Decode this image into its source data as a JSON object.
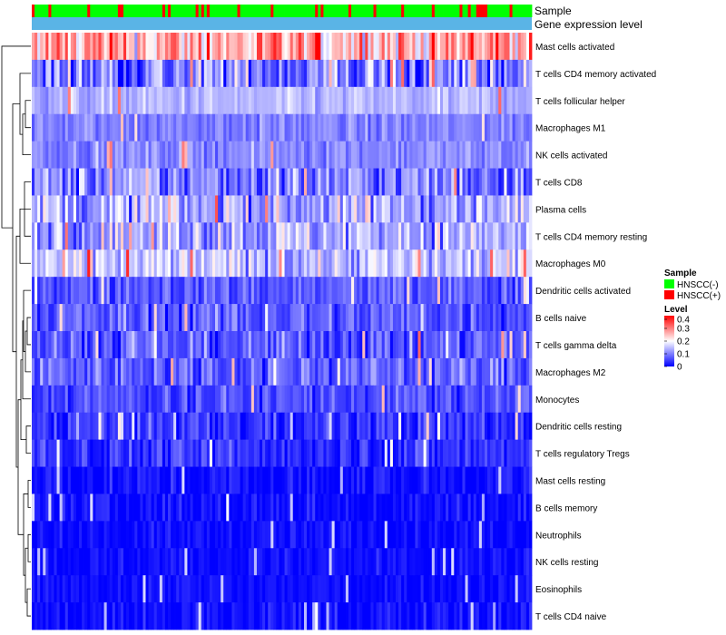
{
  "chart_data": {
    "type": "heatmap",
    "title": "",
    "n_samples": 180,
    "annotation_tracks": [
      "Sample",
      "Gene expression level"
    ],
    "rows": [
      {
        "name": "Mast cells activated",
        "mean": 0.26,
        "spread": 0.09
      },
      {
        "name": "T cells CD4 memory activated",
        "mean": 0.1,
        "spread": 0.09
      },
      {
        "name": "T cells follicular helper",
        "mean": 0.14,
        "spread": 0.03
      },
      {
        "name": "Macrophages M1",
        "mean": 0.1,
        "spread": 0.03
      },
      {
        "name": "NK cells activated",
        "mean": 0.11,
        "spread": 0.03
      },
      {
        "name": "T cells CD8",
        "mean": 0.1,
        "spread": 0.07
      },
      {
        "name": "Plasma cells",
        "mean": 0.13,
        "spread": 0.07
      },
      {
        "name": "T cells CD4 memory resting",
        "mean": 0.14,
        "spread": 0.07
      },
      {
        "name": "Macrophages M0",
        "mean": 0.15,
        "spread": 0.06
      },
      {
        "name": "Dendritic cells activated",
        "mean": 0.07,
        "spread": 0.04
      },
      {
        "name": "B cells naive",
        "mean": 0.07,
        "spread": 0.05
      },
      {
        "name": "T cells gamma delta",
        "mean": 0.07,
        "spread": 0.05
      },
      {
        "name": "Macrophages M2",
        "mean": 0.08,
        "spread": 0.05
      },
      {
        "name": "Monocytes",
        "mean": 0.06,
        "spread": 0.04
      },
      {
        "name": "Dendritic cells resting",
        "mean": 0.04,
        "spread": 0.04
      },
      {
        "name": "T cells regulatory  Tregs",
        "mean": 0.04,
        "spread": 0.04
      },
      {
        "name": "Mast cells resting",
        "mean": 0.01,
        "spread": 0.03
      },
      {
        "name": "B cells memory",
        "mean": 0.01,
        "spread": 0.03
      },
      {
        "name": "Neutrophils",
        "mean": 0.01,
        "spread": 0.02
      },
      {
        "name": "NK cells resting",
        "mean": 0.01,
        "spread": 0.02
      },
      {
        "name": "Eosinophils",
        "mean": 0.01,
        "spread": 0.02
      },
      {
        "name": "T cells CD4 naive",
        "mean": 0.01,
        "spread": 0.03
      }
    ],
    "value_range": [
      0,
      0.4
    ],
    "colors": {
      "low": "#0000ff",
      "mid": "#ffffff",
      "high": "#ff0000",
      "sample_negative": "#00ff00",
      "sample_positive": "#ff0000",
      "expression_track": "#5ab4e6"
    },
    "legend": {
      "position": "right",
      "sample_title": "Sample",
      "sample_items": [
        "HNSCC(-)",
        "HNSCC(+)"
      ],
      "level_title": "Level",
      "level_ticks": [
        "0.4",
        "0.3",
        "0.2",
        "0.1",
        "0"
      ],
      "level_tick_values": [
        0.4,
        0.3,
        0.2,
        0.1,
        0
      ]
    }
  }
}
